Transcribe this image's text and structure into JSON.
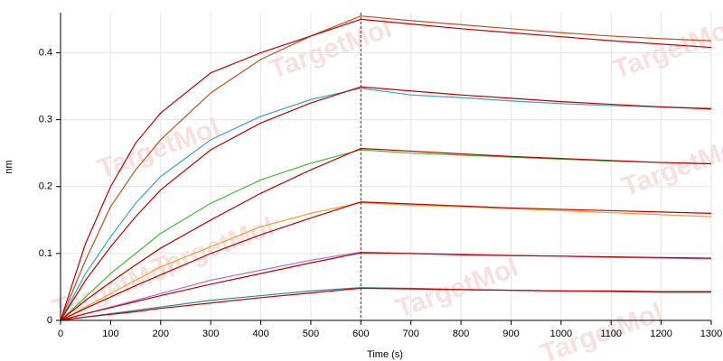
{
  "chart_data": {
    "type": "line",
    "x_label": "Time (s)",
    "y_label": "nm",
    "watermark": "TargetMol",
    "x": [
      0,
      50,
      100,
      150,
      200,
      300,
      400,
      500,
      600,
      700,
      800,
      900,
      1000,
      1100,
      1200,
      1300
    ],
    "series": [
      {
        "color": "#c0501c",
        "values": [
          0,
          0.09,
          0.17,
          0.225,
          0.27,
          0.34,
          0.39,
          0.425,
          0.455,
          0.448,
          0.442,
          0.436,
          0.43,
          0.425,
          0.421,
          0.418
        ]
      },
      {
        "color": "#3aa3c8",
        "values": [
          0,
          0.07,
          0.125,
          0.175,
          0.215,
          0.27,
          0.305,
          0.33,
          0.347,
          0.337,
          0.333,
          0.328,
          0.324,
          0.321,
          0.319,
          0.317
        ]
      },
      {
        "color": "#44bb33",
        "values": [
          0,
          0.035,
          0.07,
          0.1,
          0.13,
          0.175,
          0.21,
          0.235,
          0.255,
          0.25,
          0.247,
          0.244,
          0.241,
          0.238,
          0.236,
          0.234
        ]
      },
      {
        "color": "#f0a030",
        "values": [
          0,
          0.02,
          0.04,
          0.06,
          0.08,
          0.11,
          0.14,
          0.16,
          0.176,
          0.172,
          0.17,
          0.167,
          0.164,
          0.161,
          0.158,
          0.155
        ]
      },
      {
        "color": "#b070d8",
        "values": [
          0,
          0.01,
          0.02,
          0.03,
          0.04,
          0.06,
          0.075,
          0.09,
          0.102,
          0.1,
          0.099,
          0.097,
          0.096,
          0.094,
          0.093,
          0.092
        ]
      },
      {
        "color": "#2a8a9a",
        "values": [
          0,
          0.005,
          0.01,
          0.015,
          0.02,
          0.03,
          0.037,
          0.044,
          0.049,
          0.048,
          0.046,
          0.045,
          0.044,
          0.043,
          0.042,
          0.042
        ]
      },
      {
        "color": "#c00000",
        "values": [
          0,
          0.115,
          0.2,
          0.265,
          0.31,
          0.37,
          0.4,
          0.425,
          0.45,
          0.443,
          0.436,
          0.43,
          0.424,
          0.418,
          0.413,
          0.408
        ]
      },
      {
        "color": "#c00000",
        "values": [
          0,
          0.06,
          0.11,
          0.155,
          0.195,
          0.255,
          0.295,
          0.325,
          0.349,
          0.343,
          0.337,
          0.332,
          0.327,
          0.323,
          0.319,
          0.316
        ]
      },
      {
        "color": "#c00000",
        "values": [
          0,
          0.03,
          0.057,
          0.083,
          0.108,
          0.15,
          0.19,
          0.225,
          0.257,
          0.253,
          0.249,
          0.245,
          0.242,
          0.239,
          0.236,
          0.234
        ]
      },
      {
        "color": "#c00000",
        "values": [
          0,
          0.018,
          0.035,
          0.052,
          0.068,
          0.1,
          0.128,
          0.153,
          0.177,
          0.174,
          0.171,
          0.168,
          0.166,
          0.164,
          0.162,
          0.16
        ]
      },
      {
        "color": "#c00000",
        "values": [
          0,
          0.01,
          0.019,
          0.028,
          0.037,
          0.054,
          0.07,
          0.086,
          0.101,
          0.1,
          0.098,
          0.097,
          0.096,
          0.095,
          0.094,
          0.093
        ]
      },
      {
        "color": "#c00000",
        "values": [
          0,
          0.005,
          0.009,
          0.013,
          0.018,
          0.026,
          0.034,
          0.041,
          0.048,
          0.047,
          0.046,
          0.045,
          0.044,
          0.044,
          0.043,
          0.043
        ]
      }
    ],
    "vline": {
      "x": 600,
      "color": "#c00000"
    },
    "xlim": [
      0,
      1300
    ],
    "xticks": [
      0,
      100,
      200,
      300,
      400,
      500,
      600,
      700,
      800,
      900,
      1000,
      1100,
      1200,
      1300
    ],
    "ylim": [
      0,
      0.46
    ],
    "yticks": [
      0,
      0.1,
      0.2,
      0.3,
      0.4
    ],
    "grid": true
  }
}
